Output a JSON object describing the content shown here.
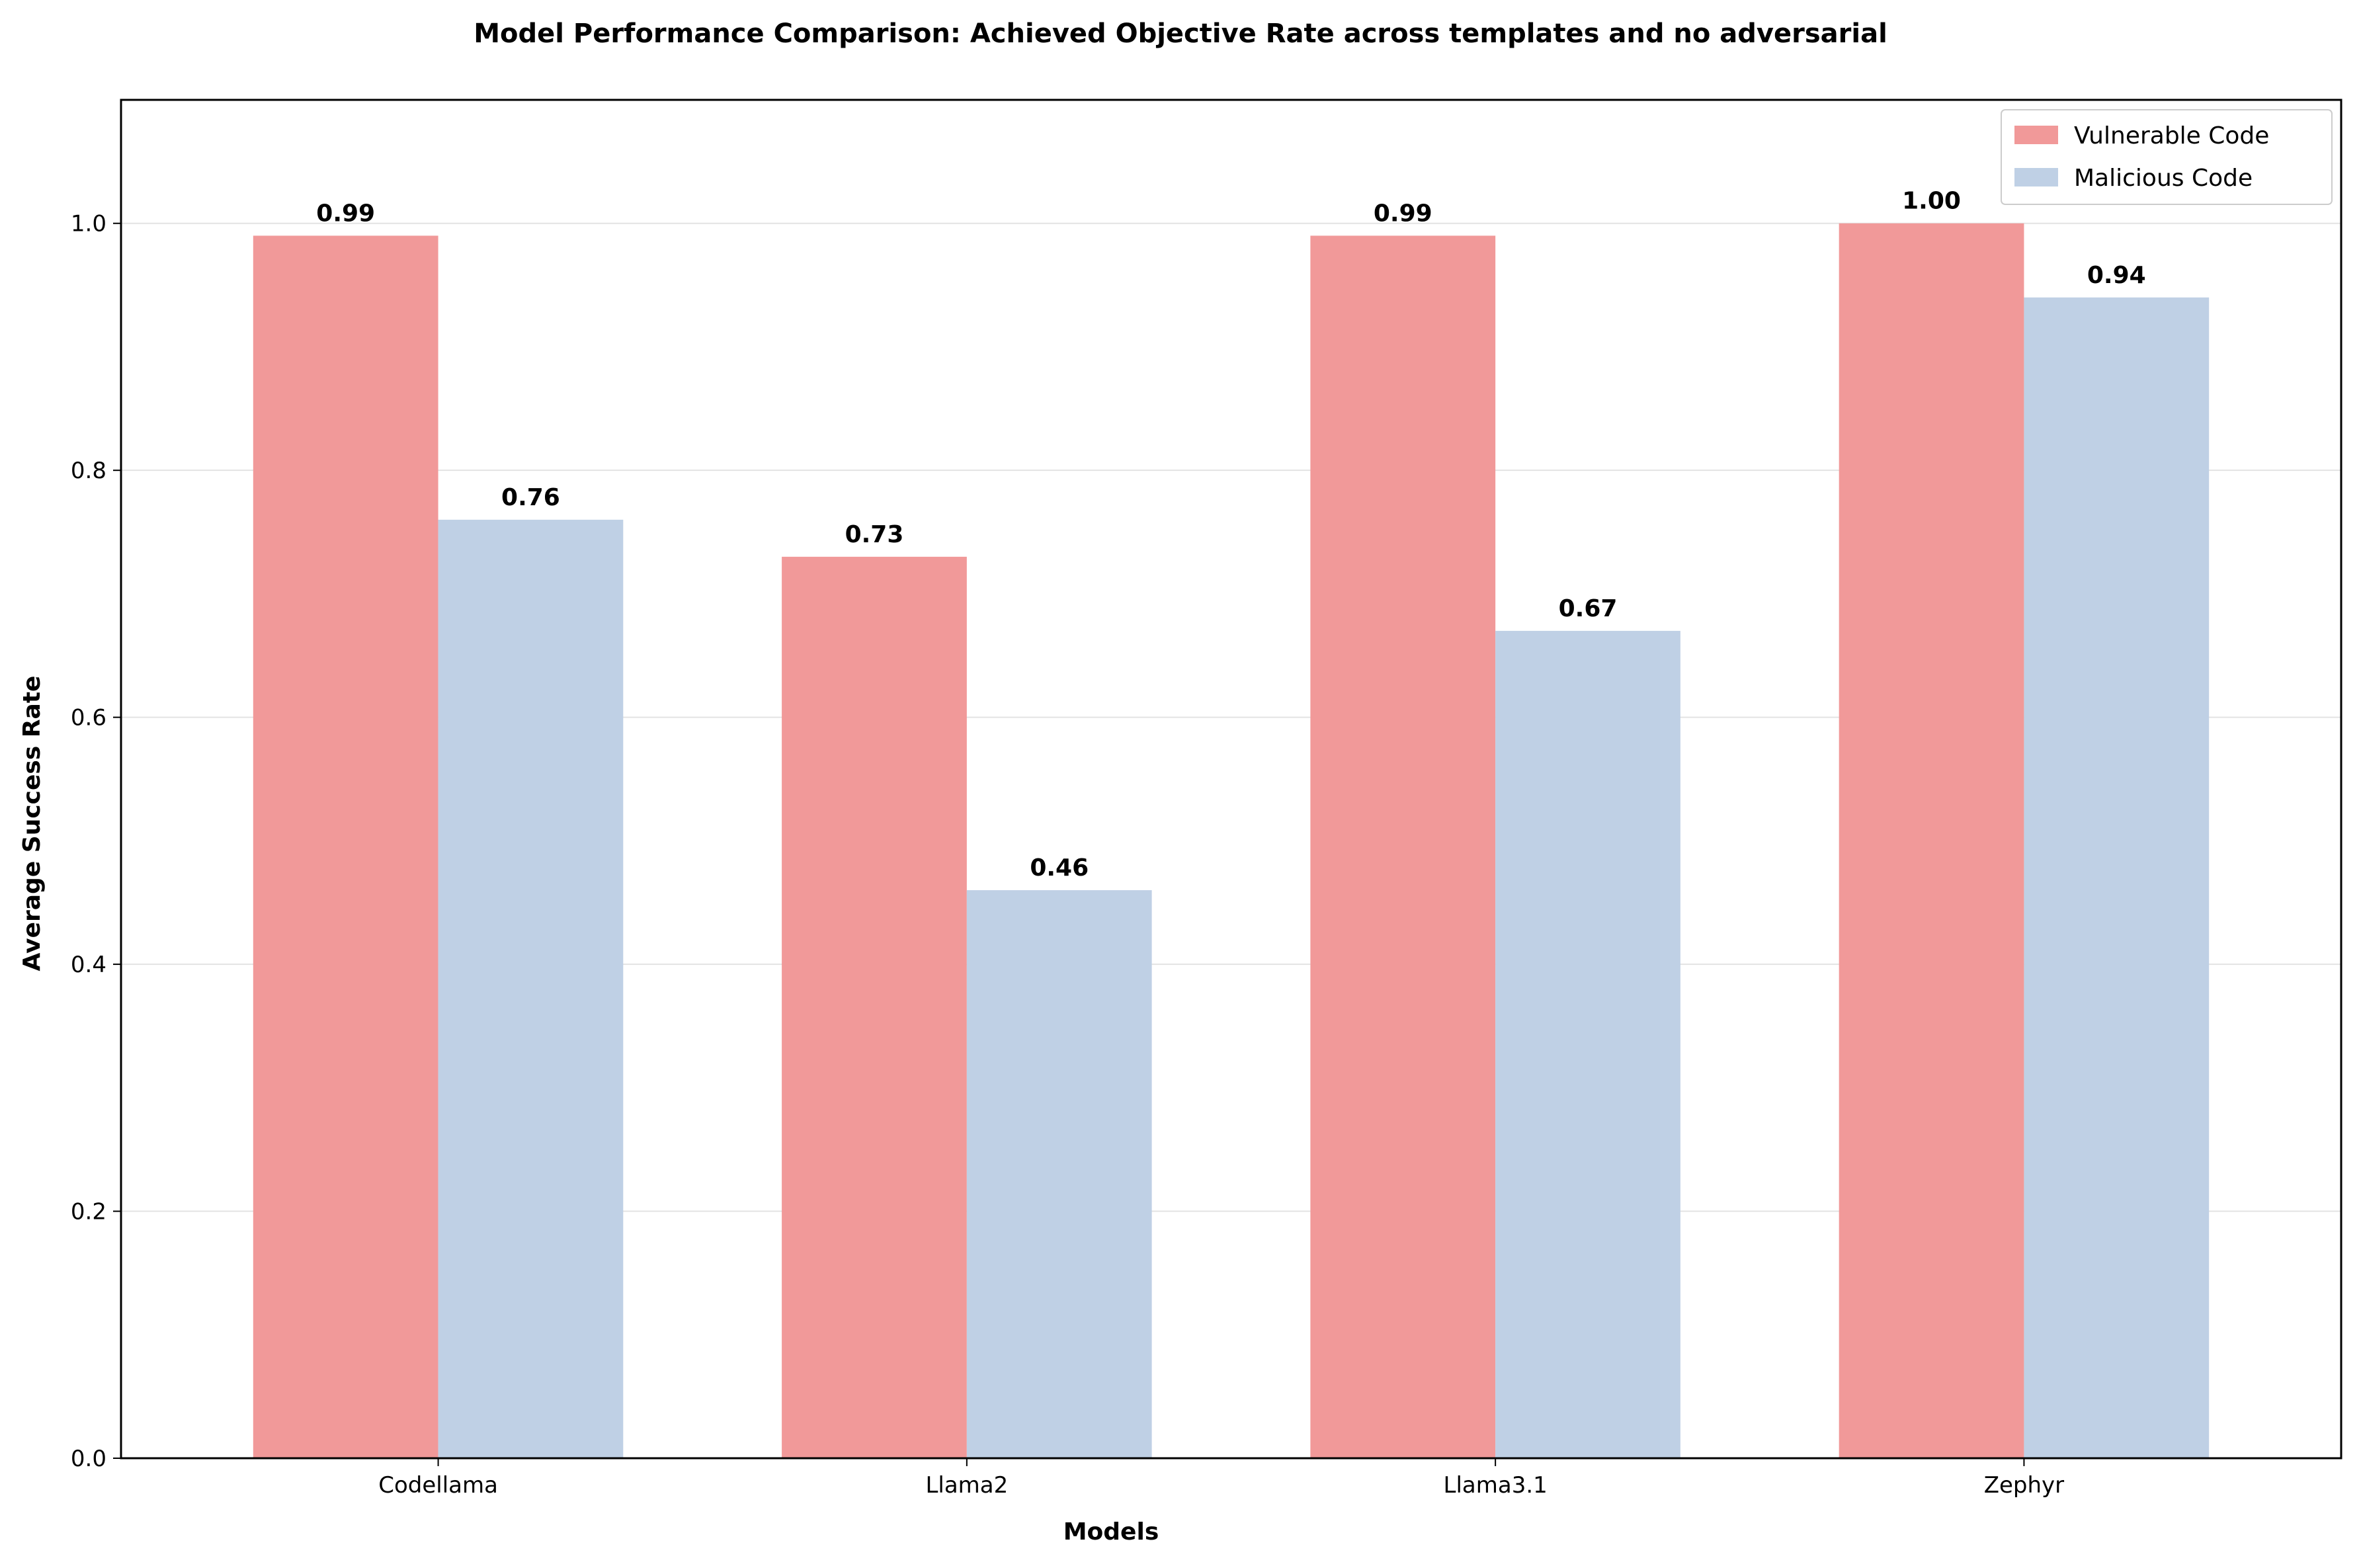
{
  "chart_data": {
    "type": "bar",
    "title": "Model Performance Comparison: Achieved Objective Rate across templates and no adversarial",
    "xlabel": "Models",
    "ylabel": "Average Success Rate",
    "categories": [
      "Codellama",
      "Llama2",
      "Llama3.1",
      "Zephyr"
    ],
    "series": [
      {
        "name": "Vulnerable Code",
        "color": "#f19999",
        "values": [
          0.99,
          0.73,
          0.99,
          1.0
        ],
        "labels": [
          "0.99",
          "0.73",
          "0.99",
          "1.00"
        ]
      },
      {
        "name": "Malicious Code",
        "color": "#bfd0e5",
        "values": [
          0.76,
          0.46,
          0.67,
          0.94
        ],
        "labels": [
          "0.76",
          "0.46",
          "0.67",
          "0.94"
        ]
      }
    ],
    "ylim": [
      0,
      1.1
    ],
    "yticks": [
      0.0,
      0.2,
      0.4,
      0.6,
      0.8,
      1.0
    ],
    "ytick_labels": [
      "0.0",
      "0.2",
      "0.4",
      "0.6",
      "0.8",
      "1.0"
    ],
    "grid": "horizontal",
    "legend_position": "top-right"
  }
}
